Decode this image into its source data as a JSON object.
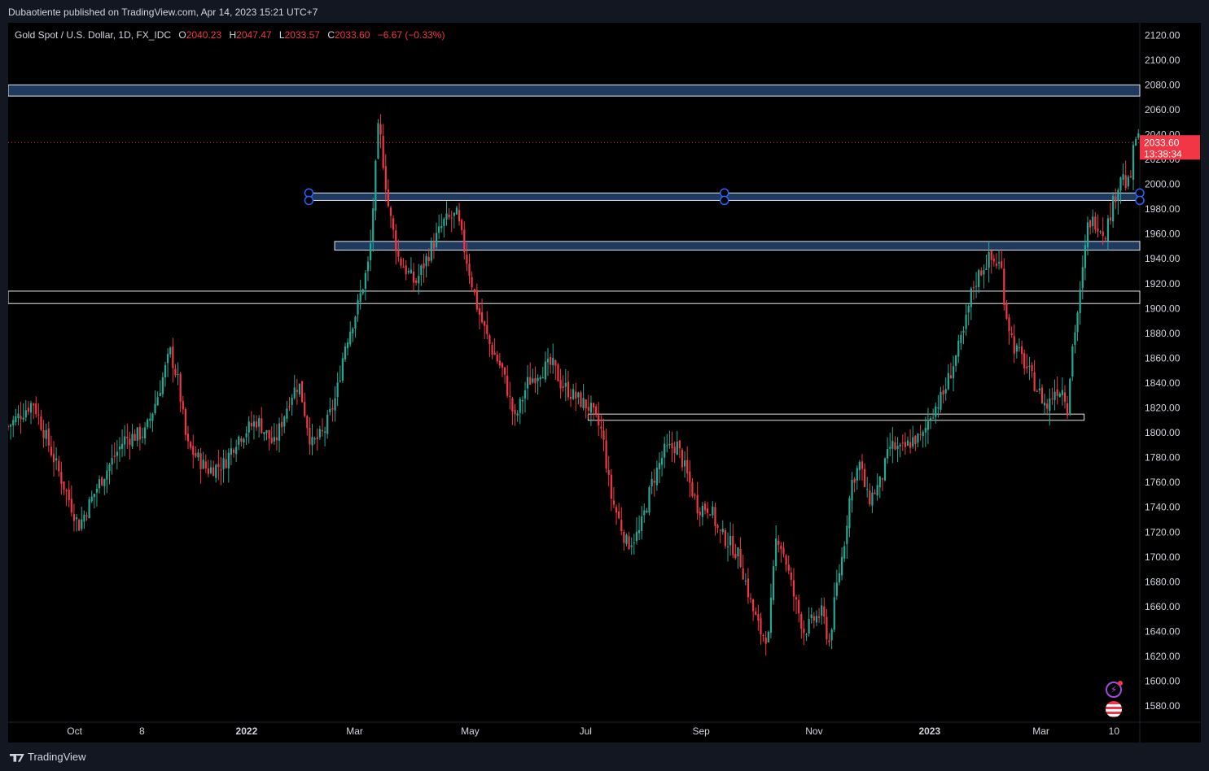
{
  "publish_info": "Dubaotiente published on TradingView.com, Apr 14, 2023 15:21 UTC+7",
  "legend": {
    "symbol": "Gold Spot / U.S. Dollar, 1D, FX_IDC",
    "open_label": "O",
    "open": "2040.23",
    "high_label": "H",
    "high": "2047.47",
    "low_label": "L",
    "low": "2033.57",
    "close_label": "C",
    "close": "2033.60",
    "change": "−6.67 (−0.33%)"
  },
  "footer": {
    "brand": "TradingView"
  },
  "colors": {
    "up": "#22ab94",
    "down": "#f23645",
    "zone_fill": "#1e3a5f",
    "zone_border": "#e6e6e6",
    "background": "#000000",
    "price_tag": "#f23645"
  },
  "chart_data": {
    "type": "candlestick",
    "ylim": [
      1567,
      2130
    ],
    "y_ticks": [
      "2120.00",
      "2100.00",
      "2080.00",
      "2060.00",
      "2040.00",
      "2020.00",
      "2000.00",
      "1980.00",
      "1960.00",
      "1940.00",
      "1920.00",
      "1900.00",
      "1880.00",
      "1860.00",
      "1840.00",
      "1820.00",
      "1800.00",
      "1780.00",
      "1760.00",
      "1740.00",
      "1720.00",
      "1700.00",
      "1680.00",
      "1660.00",
      "1640.00",
      "1620.00",
      "1600.00",
      "1580.00"
    ],
    "x_ticks": [
      {
        "label": "Oct",
        "day": 80
      },
      {
        "label": "8",
        "day": 161
      },
      {
        "label": "2022",
        "day": 287
      },
      {
        "label": "Mar",
        "day": 417
      },
      {
        "label": "May",
        "day": 556
      },
      {
        "label": "Jul",
        "day": 695
      },
      {
        "label": "Sep",
        "day": 834
      },
      {
        "label": "Nov",
        "day": 970
      },
      {
        "label": "2023",
        "day": 1109
      },
      {
        "label": "Mar",
        "day": 1243
      },
      {
        "label": "10",
        "day": 1331
      }
    ],
    "x_range": [
      0,
      1362
    ],
    "current_price": {
      "value": 2033.6,
      "label": "2033.60",
      "countdown": "13:38:34"
    },
    "zones": [
      {
        "x1": 0,
        "x2": 1362,
        "y1": 2071,
        "y2": 2080,
        "fill": true
      },
      {
        "x1": 362,
        "x2": 1362,
        "y1": 1987,
        "y2": 1993,
        "fill": true,
        "handles": true
      },
      {
        "x1": 393,
        "x2": 1362,
        "y1": 1947,
        "y2": 1954,
        "fill": true
      },
      {
        "x1": 0,
        "x2": 1362,
        "y1": 1904,
        "y2": 1914,
        "fill": false
      },
      {
        "x1": 698,
        "x2": 1295,
        "y1": 1810,
        "y2": 1815,
        "fill": false
      }
    ],
    "price_path": [
      [
        0,
        1805
      ],
      [
        30,
        1825
      ],
      [
        60,
        1770
      ],
      [
        85,
        1725
      ],
      [
        110,
        1760
      ],
      [
        140,
        1795
      ],
      [
        165,
        1800
      ],
      [
        180,
        1830
      ],
      [
        195,
        1865
      ],
      [
        205,
        1840
      ],
      [
        215,
        1790
      ],
      [
        240,
        1770
      ],
      [
        260,
        1775
      ],
      [
        275,
        1795
      ],
      [
        300,
        1810
      ],
      [
        320,
        1790
      ],
      [
        340,
        1830
      ],
      [
        350,
        1840
      ],
      [
        365,
        1790
      ],
      [
        380,
        1800
      ],
      [
        395,
        1830
      ],
      [
        405,
        1870
      ],
      [
        420,
        1900
      ],
      [
        435,
        1940
      ],
      [
        446,
        2050
      ],
      [
        458,
        1980
      ],
      [
        470,
        1940
      ],
      [
        490,
        1920
      ],
      [
        510,
        1950
      ],
      [
        525,
        1970
      ],
      [
        540,
        1975
      ],
      [
        550,
        1945
      ],
      [
        565,
        1900
      ],
      [
        580,
        1870
      ],
      [
        595,
        1850
      ],
      [
        610,
        1810
      ],
      [
        625,
        1840
      ],
      [
        640,
        1850
      ],
      [
        655,
        1855
      ],
      [
        665,
        1840
      ],
      [
        680,
        1830
      ],
      [
        700,
        1820
      ],
      [
        715,
        1800
      ],
      [
        725,
        1750
      ],
      [
        735,
        1730
      ],
      [
        745,
        1710
      ],
      [
        760,
        1720
      ],
      [
        775,
        1760
      ],
      [
        790,
        1785
      ],
      [
        805,
        1790
      ],
      [
        815,
        1770
      ],
      [
        830,
        1740
      ],
      [
        845,
        1740
      ],
      [
        855,
        1720
      ],
      [
        870,
        1710
      ],
      [
        880,
        1700
      ],
      [
        895,
        1660
      ],
      [
        905,
        1640
      ],
      [
        915,
        1635
      ],
      [
        925,
        1720
      ],
      [
        935,
        1700
      ],
      [
        945,
        1670
      ],
      [
        958,
        1640
      ],
      [
        970,
        1650
      ],
      [
        980,
        1655
      ],
      [
        988,
        1630
      ],
      [
        998,
        1680
      ],
      [
        1005,
        1705
      ],
      [
        1015,
        1760
      ],
      [
        1025,
        1775
      ],
      [
        1035,
        1745
      ],
      [
        1050,
        1760
      ],
      [
        1062,
        1790
      ],
      [
        1075,
        1785
      ],
      [
        1090,
        1795
      ],
      [
        1100,
        1795
      ],
      [
        1110,
        1815
      ],
      [
        1125,
        1830
      ],
      [
        1140,
        1860
      ],
      [
        1150,
        1880
      ],
      [
        1160,
        1915
      ],
      [
        1170,
        1930
      ],
      [
        1180,
        1940
      ],
      [
        1195,
        1935
      ],
      [
        1200,
        1900
      ],
      [
        1210,
        1870
      ],
      [
        1220,
        1860
      ],
      [
        1235,
        1840
      ],
      [
        1250,
        1820
      ],
      [
        1260,
        1835
      ],
      [
        1270,
        1835
      ],
      [
        1275,
        1820
      ],
      [
        1280,
        1865
      ],
      [
        1290,
        1910
      ],
      [
        1300,
        1970
      ],
      [
        1310,
        1970
      ],
      [
        1320,
        1960
      ],
      [
        1330,
        1985
      ],
      [
        1340,
        2010
      ],
      [
        1345,
        2000
      ],
      [
        1350,
        2000
      ],
      [
        1355,
        2030
      ],
      [
        1358,
        2040
      ],
      [
        1362,
        2033
      ]
    ]
  }
}
